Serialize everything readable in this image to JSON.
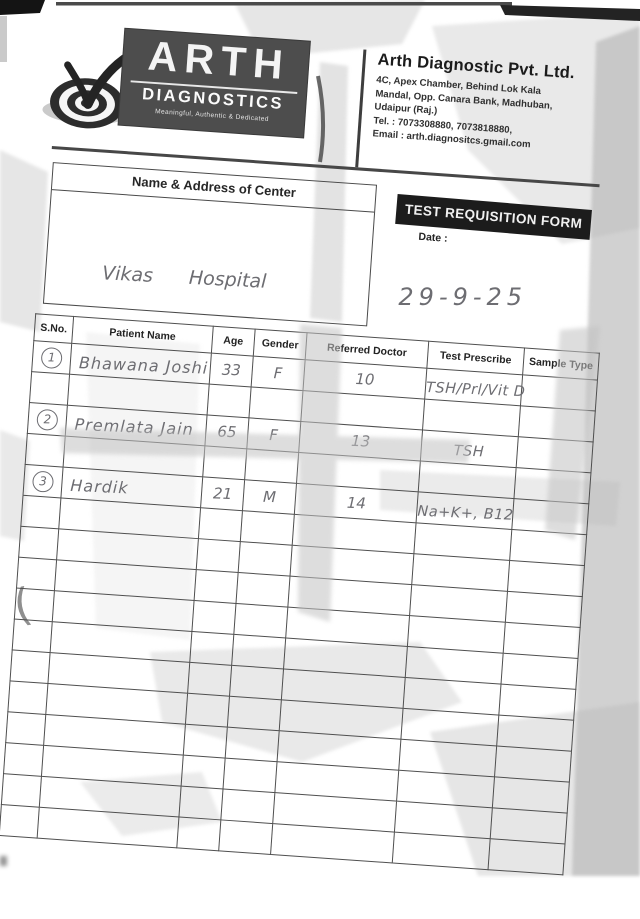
{
  "letterhead": {
    "logo": {
      "title": "ARTH",
      "subtitle": "DIAGNOSTICS",
      "tagline": "Meaningful, Authentic & Dedicated",
      "icon": "target-with-checkmark"
    },
    "company": {
      "name": "Arth Diagnostic Pvt. Ltd.",
      "address_line1": "4C, Apex Chamber, Behind Lok Kala",
      "address_line2": "Mandal, Opp. Canara Bank, Madhuban,",
      "address_line3": "Udaipur (Raj.)",
      "tel": "Tel. : 7073308880, 7073818880,",
      "email": "Email : arth.diagnositcs.gmail.com"
    }
  },
  "form": {
    "center_box_label": "Name & Address of Center",
    "center_value": "Vikas Hospital",
    "title": "TEST REQUISITION FORM",
    "date_label": "Date :",
    "date_value": "29-9-25",
    "margin_mark": "("
  },
  "table": {
    "headers": [
      "S.No.",
      "Patient Name",
      "Age",
      "Gender",
      "Referred Doctor",
      "Test Prescribe",
      "Sample Type"
    ],
    "row_count": 16,
    "entries": [
      {
        "row": 0,
        "sno": "1",
        "name": "Bhawana Joshi",
        "age": "33",
        "gender": "F",
        "doctor": "10",
        "test": "TSH/Prl/Vit D",
        "sample": ""
      },
      {
        "row": 2,
        "sno": "2",
        "name": "Premlata Jain",
        "age": "65",
        "gender": "F",
        "doctor": "13",
        "test": "TSH",
        "sample": ""
      },
      {
        "row": 4,
        "sno": "3",
        "name": "Hardik",
        "age": "21",
        "gender": "M",
        "doctor": "14",
        "test": "Na+K+, B12",
        "sample": ""
      }
    ]
  },
  "colors": {
    "logo_bg": "#4d4d4d",
    "title_box_bg": "#1c1c1c",
    "hw": "#6d6d72",
    "table_line": "#4f4f4f",
    "paper_shadow": "#c7c7c7"
  }
}
